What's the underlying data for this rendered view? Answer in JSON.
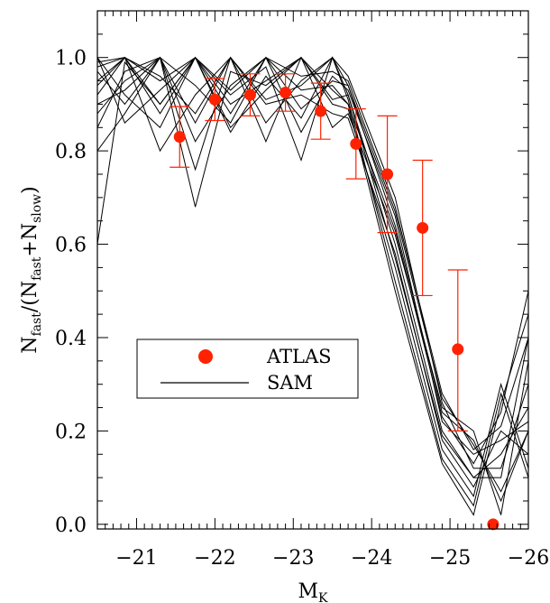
{
  "chart_data": {
    "type": "scatter",
    "title": "",
    "xlabel": "M",
    "xlabel_sub": "K",
    "ylabel_parts": {
      "n1": "N",
      "s1": "fast",
      "mid": "/(N",
      "s2": "fast",
      "plus": "+N",
      "s3": "slow",
      "end": ")"
    },
    "xlim": [
      -20.5,
      -26.0
    ],
    "ylim": [
      -0.01,
      1.1
    ],
    "xticks": [
      -21,
      -22,
      -23,
      -24,
      -25,
      -26
    ],
    "xtick_labels": [
      "−21",
      "−22",
      "−23",
      "−24",
      "−25",
      "−26"
    ],
    "yticks": [
      0.0,
      0.2,
      0.4,
      0.6,
      0.8,
      1.0
    ],
    "ytick_labels": [
      "0.0",
      "0.2",
      "0.4",
      "0.6",
      "0.8",
      "1.0"
    ],
    "grid": false,
    "legend_position": "center-left",
    "colors": {
      "atlas": "#ff2200",
      "sam": "#000000"
    },
    "series": [
      {
        "name": "ATLAS",
        "kind": "points-with-errorbars",
        "x": [
          -21.55,
          -22.0,
          -22.45,
          -22.9,
          -23.35,
          -23.8,
          -24.2,
          -24.65,
          -25.1,
          -25.55
        ],
        "y": [
          0.83,
          0.91,
          0.92,
          0.925,
          0.885,
          0.815,
          0.75,
          0.635,
          0.375,
          0.0
        ],
        "yerr_low": [
          0.065,
          0.045,
          0.045,
          0.04,
          0.06,
          0.075,
          0.125,
          0.145,
          0.175,
          0.0
        ],
        "yerr_high": [
          0.065,
          0.045,
          0.045,
          0.04,
          0.06,
          0.075,
          0.125,
          0.145,
          0.17,
          0.0
        ]
      },
      {
        "name": "SAM",
        "kind": "line-realisations",
        "x": [
          -20.5,
          -20.85,
          -21.3,
          -21.75,
          -22.2,
          -22.65,
          -23.1,
          -23.5,
          -23.7,
          -24.3,
          -24.9,
          -25.3,
          -25.65,
          -26.0
        ],
        "realisations": [
          [
            0.99,
            1.0,
            0.95,
            1.0,
            0.93,
            1.0,
            0.96,
            0.97,
            0.95,
            0.68,
            0.28,
            0.16,
            0.21,
            0.4
          ],
          [
            0.97,
            0.9,
            1.0,
            0.86,
            1.0,
            0.91,
            0.94,
            1.0,
            0.92,
            0.6,
            0.2,
            0.1,
            0.15,
            0.25
          ],
          [
            0.92,
            1.0,
            0.88,
            1.0,
            0.9,
            0.95,
            1.0,
            0.9,
            0.89,
            0.55,
            0.16,
            0.06,
            0.3,
            0.12
          ],
          [
            0.88,
            0.95,
            1.0,
            0.82,
            0.94,
            1.0,
            0.89,
            0.95,
            0.94,
            0.64,
            0.24,
            0.18,
            0.05,
            0.2
          ],
          [
            1.0,
            0.86,
            0.93,
            1.0,
            0.85,
            0.93,
            1.0,
            0.93,
            0.9,
            0.5,
            0.13,
            0.02,
            0.26,
            0.45
          ],
          [
            0.95,
            1.0,
            0.8,
            0.92,
            1.0,
            0.86,
            0.95,
            1.0,
            0.96,
            0.7,
            0.26,
            0.12,
            0.12,
            0.3
          ],
          [
            0.9,
            0.93,
            1.0,
            0.76,
            1.0,
            0.9,
            0.92,
            0.88,
            0.87,
            0.58,
            0.18,
            0.08,
            0.2,
            0.15
          ],
          [
            0.98,
            1.0,
            0.9,
            1.0,
            0.88,
            1.0,
            0.84,
            0.96,
            0.93,
            0.66,
            0.22,
            0.15,
            0.18,
            0.22
          ],
          [
            0.85,
            0.97,
            1.0,
            0.68,
            0.97,
            0.94,
            1.0,
            0.85,
            0.88,
            0.62,
            0.25,
            0.2,
            0.02,
            0.35
          ],
          [
            1.0,
            0.92,
            0.85,
            1.0,
            0.92,
            0.98,
            0.78,
            1.0,
            0.91,
            0.52,
            0.14,
            0.04,
            0.28,
            0.1
          ],
          [
            0.94,
            1.0,
            0.96,
            0.88,
            1.0,
            0.82,
            1.0,
            0.91,
            0.92,
            0.57,
            0.19,
            0.1,
            0.1,
            0.4
          ],
          [
            0.8,
            0.88,
            1.0,
            0.94,
            0.86,
            1.0,
            0.93,
            0.94,
            0.9,
            0.63,
            0.23,
            0.13,
            0.24,
            0.5
          ],
          [
            0.6,
            0.99,
            0.9,
            1.0,
            0.84,
            0.96,
            0.87,
            1.0,
            0.94,
            0.67,
            0.27,
            0.17,
            0.07,
            0.2
          ]
        ]
      }
    ]
  }
}
